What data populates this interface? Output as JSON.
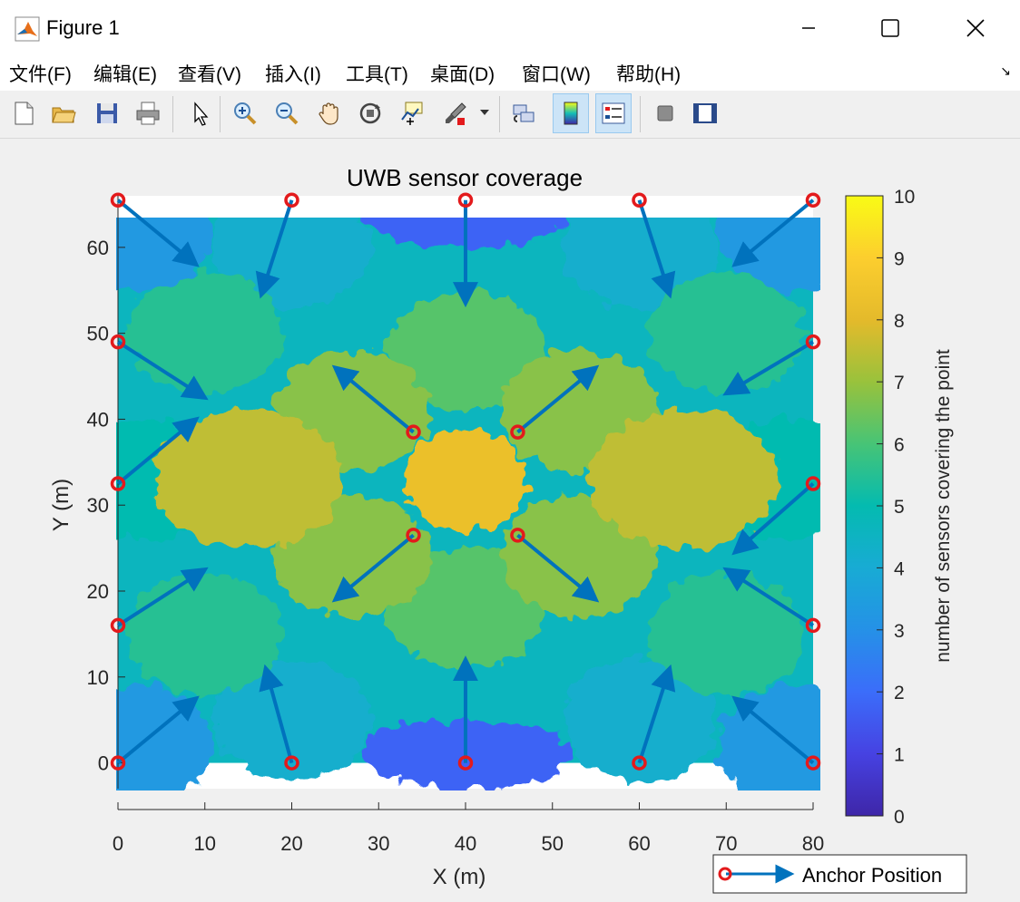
{
  "window": {
    "title": "Figure 1"
  },
  "menu": {
    "items": [
      "文件(F)",
      "编辑(E)",
      "查看(V)",
      "插入(I)",
      "工具(T)",
      "桌面(D)",
      "窗口(W)",
      "帮助(H)"
    ],
    "overflow_icon": "arrow-expand-icon"
  },
  "toolbar": {
    "buttons": [
      "new-figure-icon",
      "open-file-icon",
      "save-icon",
      "print-icon",
      "pointer-icon",
      "zoom-in-icon",
      "zoom-out-icon",
      "pan-hand-icon",
      "rotate-3d-icon",
      "data-cursor-icon",
      "brush-icon",
      "link-plot-icon",
      "colorbar-icon",
      "legend-icon",
      "hide-plot-tools-icon",
      "show-plot-tools-icon"
    ]
  },
  "colors": {
    "anchor_marker": "#e31a1c",
    "arrow": "#0072bd"
  },
  "chart_data": {
    "type": "heatmap",
    "title": "UWB sensor coverage",
    "xlabel": "X (m)",
    "ylabel": "Y (m)",
    "xlim": [
      0,
      80
    ],
    "ylim": [
      -3,
      66
    ],
    "xticks": [
      0,
      10,
      20,
      30,
      40,
      50,
      60,
      70,
      80
    ],
    "yticks": [
      0,
      10,
      20,
      30,
      40,
      50,
      60
    ],
    "colorbar": {
      "label": "number of sensors covering the point",
      "range": [
        0,
        10
      ],
      "ticks": [
        0,
        1,
        2,
        3,
        4,
        5,
        6,
        7,
        8,
        9,
        10
      ],
      "colormap": "parula"
    },
    "legend": {
      "entries": [
        "Anchor Position"
      ],
      "placement": "bottom-right outside"
    },
    "coverage_regions": [
      {
        "x": 40,
        "y": 33,
        "value": 8.3
      },
      {
        "x": 15,
        "y": 33,
        "value": 7.5
      },
      {
        "x": 65,
        "y": 33,
        "value": 7.5
      },
      {
        "x": 27,
        "y": 41,
        "value": 6.8
      },
      {
        "x": 53,
        "y": 41,
        "value": 6.8
      },
      {
        "x": 27,
        "y": 24,
        "value": 6.8
      },
      {
        "x": 53,
        "y": 24,
        "value": 6.8
      },
      {
        "x": 40,
        "y": 48,
        "value": 6.2
      },
      {
        "x": 40,
        "y": 18,
        "value": 6.2
      },
      {
        "x": 10,
        "y": 50,
        "value": 5.5
      },
      {
        "x": 70,
        "y": 50,
        "value": 5.5
      },
      {
        "x": 10,
        "y": 15,
        "value": 5.5
      },
      {
        "x": 70,
        "y": 15,
        "value": 5.5
      },
      {
        "x": 3,
        "y": 33,
        "value": 5.0
      },
      {
        "x": 77,
        "y": 33,
        "value": 5.0
      },
      {
        "x": 20,
        "y": 60,
        "value": 4.2
      },
      {
        "x": 60,
        "y": 60,
        "value": 4.2
      },
      {
        "x": 20,
        "y": 5,
        "value": 4.2
      },
      {
        "x": 60,
        "y": 5,
        "value": 4.2
      },
      {
        "x": 2,
        "y": 62,
        "value": 3.3
      },
      {
        "x": 78,
        "y": 62,
        "value": 3.3
      },
      {
        "x": 2,
        "y": 2,
        "value": 3.3
      },
      {
        "x": 78,
        "y": 2,
        "value": 3.3
      },
      {
        "x": 40,
        "y": 64,
        "value": 1.8
      },
      {
        "x": 40,
        "y": 1,
        "value": 1.8
      }
    ],
    "anchors": [
      {
        "x": 0,
        "y": 0,
        "dx": 9,
        "dy": 7.5
      },
      {
        "x": 20,
        "y": 0,
        "dx": -3,
        "dy": 11
      },
      {
        "x": 40,
        "y": 0,
        "dx": 0,
        "dy": 12
      },
      {
        "x": 60,
        "y": 0,
        "dx": 3.5,
        "dy": 11
      },
      {
        "x": 80,
        "y": 0,
        "dx": -9,
        "dy": 7.5
      },
      {
        "x": 0,
        "y": 16,
        "dx": 10,
        "dy": 6.5
      },
      {
        "x": 80,
        "y": 16,
        "dx": -10,
        "dy": 6.5
      },
      {
        "x": 0,
        "y": 32.5,
        "dx": 9,
        "dy": 7.5
      },
      {
        "x": 80,
        "y": 32.5,
        "dx": -9,
        "dy": -8
      },
      {
        "x": 0,
        "y": 49,
        "dx": 10,
        "dy": -6.5
      },
      {
        "x": 80,
        "y": 49,
        "dx": -10,
        "dy": -6
      },
      {
        "x": 0,
        "y": 65.5,
        "dx": 9,
        "dy": -7.5
      },
      {
        "x": 20,
        "y": 65.5,
        "dx": -3.5,
        "dy": -11
      },
      {
        "x": 40,
        "y": 65.5,
        "dx": 0,
        "dy": -12
      },
      {
        "x": 60,
        "y": 65.5,
        "dx": 3.5,
        "dy": -11
      },
      {
        "x": 80,
        "y": 65.5,
        "dx": -9,
        "dy": -7.5
      },
      {
        "x": 34,
        "y": 38.5,
        "dx": -9,
        "dy": 7.5
      },
      {
        "x": 46,
        "y": 38.5,
        "dx": 9,
        "dy": 7.5
      },
      {
        "x": 34,
        "y": 26.5,
        "dx": -9,
        "dy": -7.5
      },
      {
        "x": 46,
        "y": 26.5,
        "dx": 9,
        "dy": -7.5
      }
    ]
  }
}
